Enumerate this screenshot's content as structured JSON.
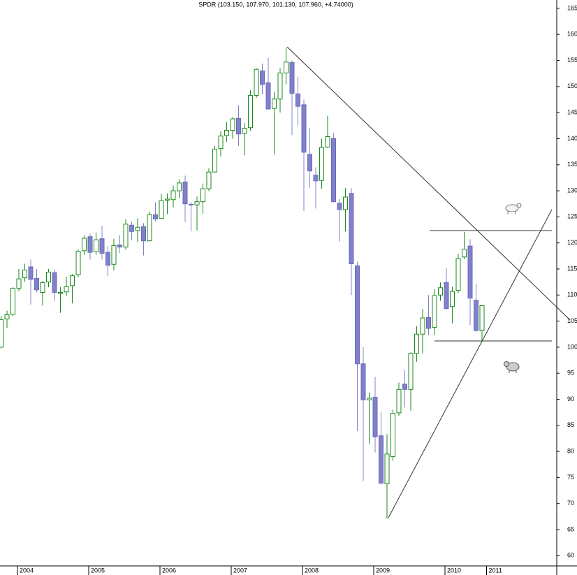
{
  "chart_data": {
    "type": "candlestick",
    "title": "SPDR (103.150, 107.970, 101.130, 107.960, +4.74000)",
    "categories": [
      null,
      null,
      null,
      "2004",
      null,
      null,
      null,
      null,
      null,
      null,
      null,
      null,
      null,
      null,
      null,
      "2005",
      null,
      null,
      null,
      null,
      null,
      null,
      null,
      null,
      null,
      null,
      null,
      "2006",
      null,
      null,
      null,
      null,
      null,
      null,
      null,
      null,
      null,
      null,
      null,
      "2007",
      null,
      null,
      null,
      null,
      null,
      null,
      null,
      null,
      null,
      null,
      null,
      "2008",
      null,
      null,
      null,
      null,
      null,
      null,
      null,
      null,
      null,
      null,
      null,
      "2009",
      null,
      null,
      null,
      null,
      null,
      null,
      null,
      null,
      null,
      null,
      null,
      "2010",
      null,
      null,
      null,
      null,
      null,
      null,
      "2011"
    ],
    "open": [
      100.0,
      105.4,
      106.3,
      111.3,
      113.3,
      115.4,
      113.2,
      110.5,
      112.5,
      114.3,
      110.3,
      110.6,
      111.8,
      113.9,
      118.5,
      121.2,
      118.3,
      120.8,
      118.2,
      115.9,
      119.6,
      119.2,
      123.4,
      122.4,
      123.1,
      120.4,
      125.4,
      124.7,
      128.2,
      128.3,
      130.0,
      131.7,
      127.4,
      127.3,
      127.9,
      130.4,
      133.6,
      138.1,
      140.6,
      141.6,
      143.9,
      141.0,
      142.1,
      148.3,
      153.0,
      150.7,
      145.8,
      147.6,
      152.6,
      154.6,
      148.6,
      146.5,
      137.0,
      133.0,
      132.0,
      138.4,
      140.0,
      127.6,
      126.4,
      129.5,
      115.6,
      96.8,
      89.9,
      90.4,
      83.0,
      73.8,
      79.0,
      87.4,
      92.9,
      91.9,
      98.8,
      102.5,
      105.7,
      103.8,
      110.0,
      112.4,
      107.8,
      110.9,
      117.3,
      119.4,
      109.0,
      103.15,
      null
    ],
    "high": [
      106.0,
      107.0,
      111.5,
      115.0,
      116.0,
      116.8,
      115.0,
      112.7,
      115.0,
      114.9,
      111.5,
      113.5,
      114.0,
      118.7,
      121.5,
      121.8,
      122.0,
      123.3,
      119.4,
      120.8,
      121.5,
      124.5,
      124.1,
      124.7,
      123.8,
      126.0,
      127.8,
      129.4,
      129.5,
      131.0,
      132.2,
      132.9,
      127.8,
      128.9,
      131.4,
      134.3,
      138.6,
      141.4,
      143.2,
      144.1,
      146.4,
      143.0,
      149.3,
      153.5,
      154.4,
      155.5,
      149.0,
      153.5,
      157.5,
      155.0,
      151.9,
      147.5,
      142.0,
      134.5,
      140.0,
      144.4,
      141.1,
      128.4,
      130.5,
      130.5,
      116.4,
      100.0,
      91.3,
      94.3,
      87.6,
      83.3,
      88.0,
      93.2,
      95.6,
      99.0,
      104.0,
      107.3,
      110.0,
      111.1,
      112.4,
      115.1,
      111.6,
      117.9,
      122.1,
      120.7,
      112.2,
      107.97,
      null
    ],
    "low": [
      99.8,
      103.7,
      105.9,
      110.7,
      112.5,
      108.2,
      110.5,
      108.0,
      111.5,
      108.8,
      106.6,
      109.8,
      108.4,
      113.4,
      117.7,
      116.8,
      117.7,
      116.8,
      113.6,
      114.7,
      118.1,
      118.7,
      120.5,
      120.2,
      117.6,
      120.3,
      124.1,
      124.7,
      125.5,
      126.8,
      128.6,
      124.0,
      122.2,
      122.4,
      125.6,
      129.9,
      133.5,
      136.6,
      139.4,
      140.0,
      138.6,
      136.8,
      141.5,
      147.8,
      148.5,
      145.5,
      137.0,
      145.0,
      150.4,
      140.7,
      142.5,
      126.1,
      130.6,
      126.6,
      130.4,
      138.2,
      127.8,
      120.2,
      122.2,
      110.0,
      83.9,
      74.3,
      81.4,
      79.8,
      73.7,
      67.1,
      78.2,
      86.8,
      88.4,
      87.8,
      97.2,
      98.8,
      102.3,
      102.4,
      108.9,
      107.2,
      104.6,
      110.4,
      116.9,
      104.2,
      102.9,
      101.13,
      null
    ],
    "close": [
      105.3,
      106.2,
      111.3,
      113.1,
      114.8,
      113.0,
      111.0,
      112.4,
      114.4,
      110.5,
      110.5,
      111.6,
      113.7,
      118.4,
      120.9,
      118.2,
      120.6,
      118.0,
      115.7,
      119.5,
      119.2,
      123.6,
      122.2,
      123.0,
      120.4,
      125.4,
      124.6,
      128.1,
      128.4,
      130.0,
      131.5,
      127.5,
      127.3,
      127.9,
      130.4,
      133.6,
      138.0,
      140.5,
      141.6,
      143.8,
      140.9,
      142.0,
      148.3,
      153.3,
      150.4,
      145.7,
      147.6,
      152.6,
      154.7,
      148.7,
      146.2,
      137.4,
      133.8,
      131.9,
      138.3,
      140.4,
      127.9,
      126.4,
      128.8,
      116.0,
      96.8,
      89.9,
      90.2,
      82.8,
      73.9,
      79.5,
      87.3,
      91.9,
      91.9,
      98.8,
      102.5,
      105.6,
      103.6,
      109.9,
      111.4,
      107.4,
      110.7,
      117.0,
      118.8,
      109.4,
      103.2,
      107.96,
      null
    ],
    "up_color": "#1a8a1a",
    "down_color": "#8080cc",
    "ylim": [
      58.3,
      166.6
    ],
    "yticks": [
      60,
      65,
      70,
      75,
      80,
      85,
      90,
      95,
      100,
      105,
      110,
      115,
      120,
      125,
      130,
      135,
      140,
      145,
      150,
      155,
      160,
      165
    ]
  }
}
